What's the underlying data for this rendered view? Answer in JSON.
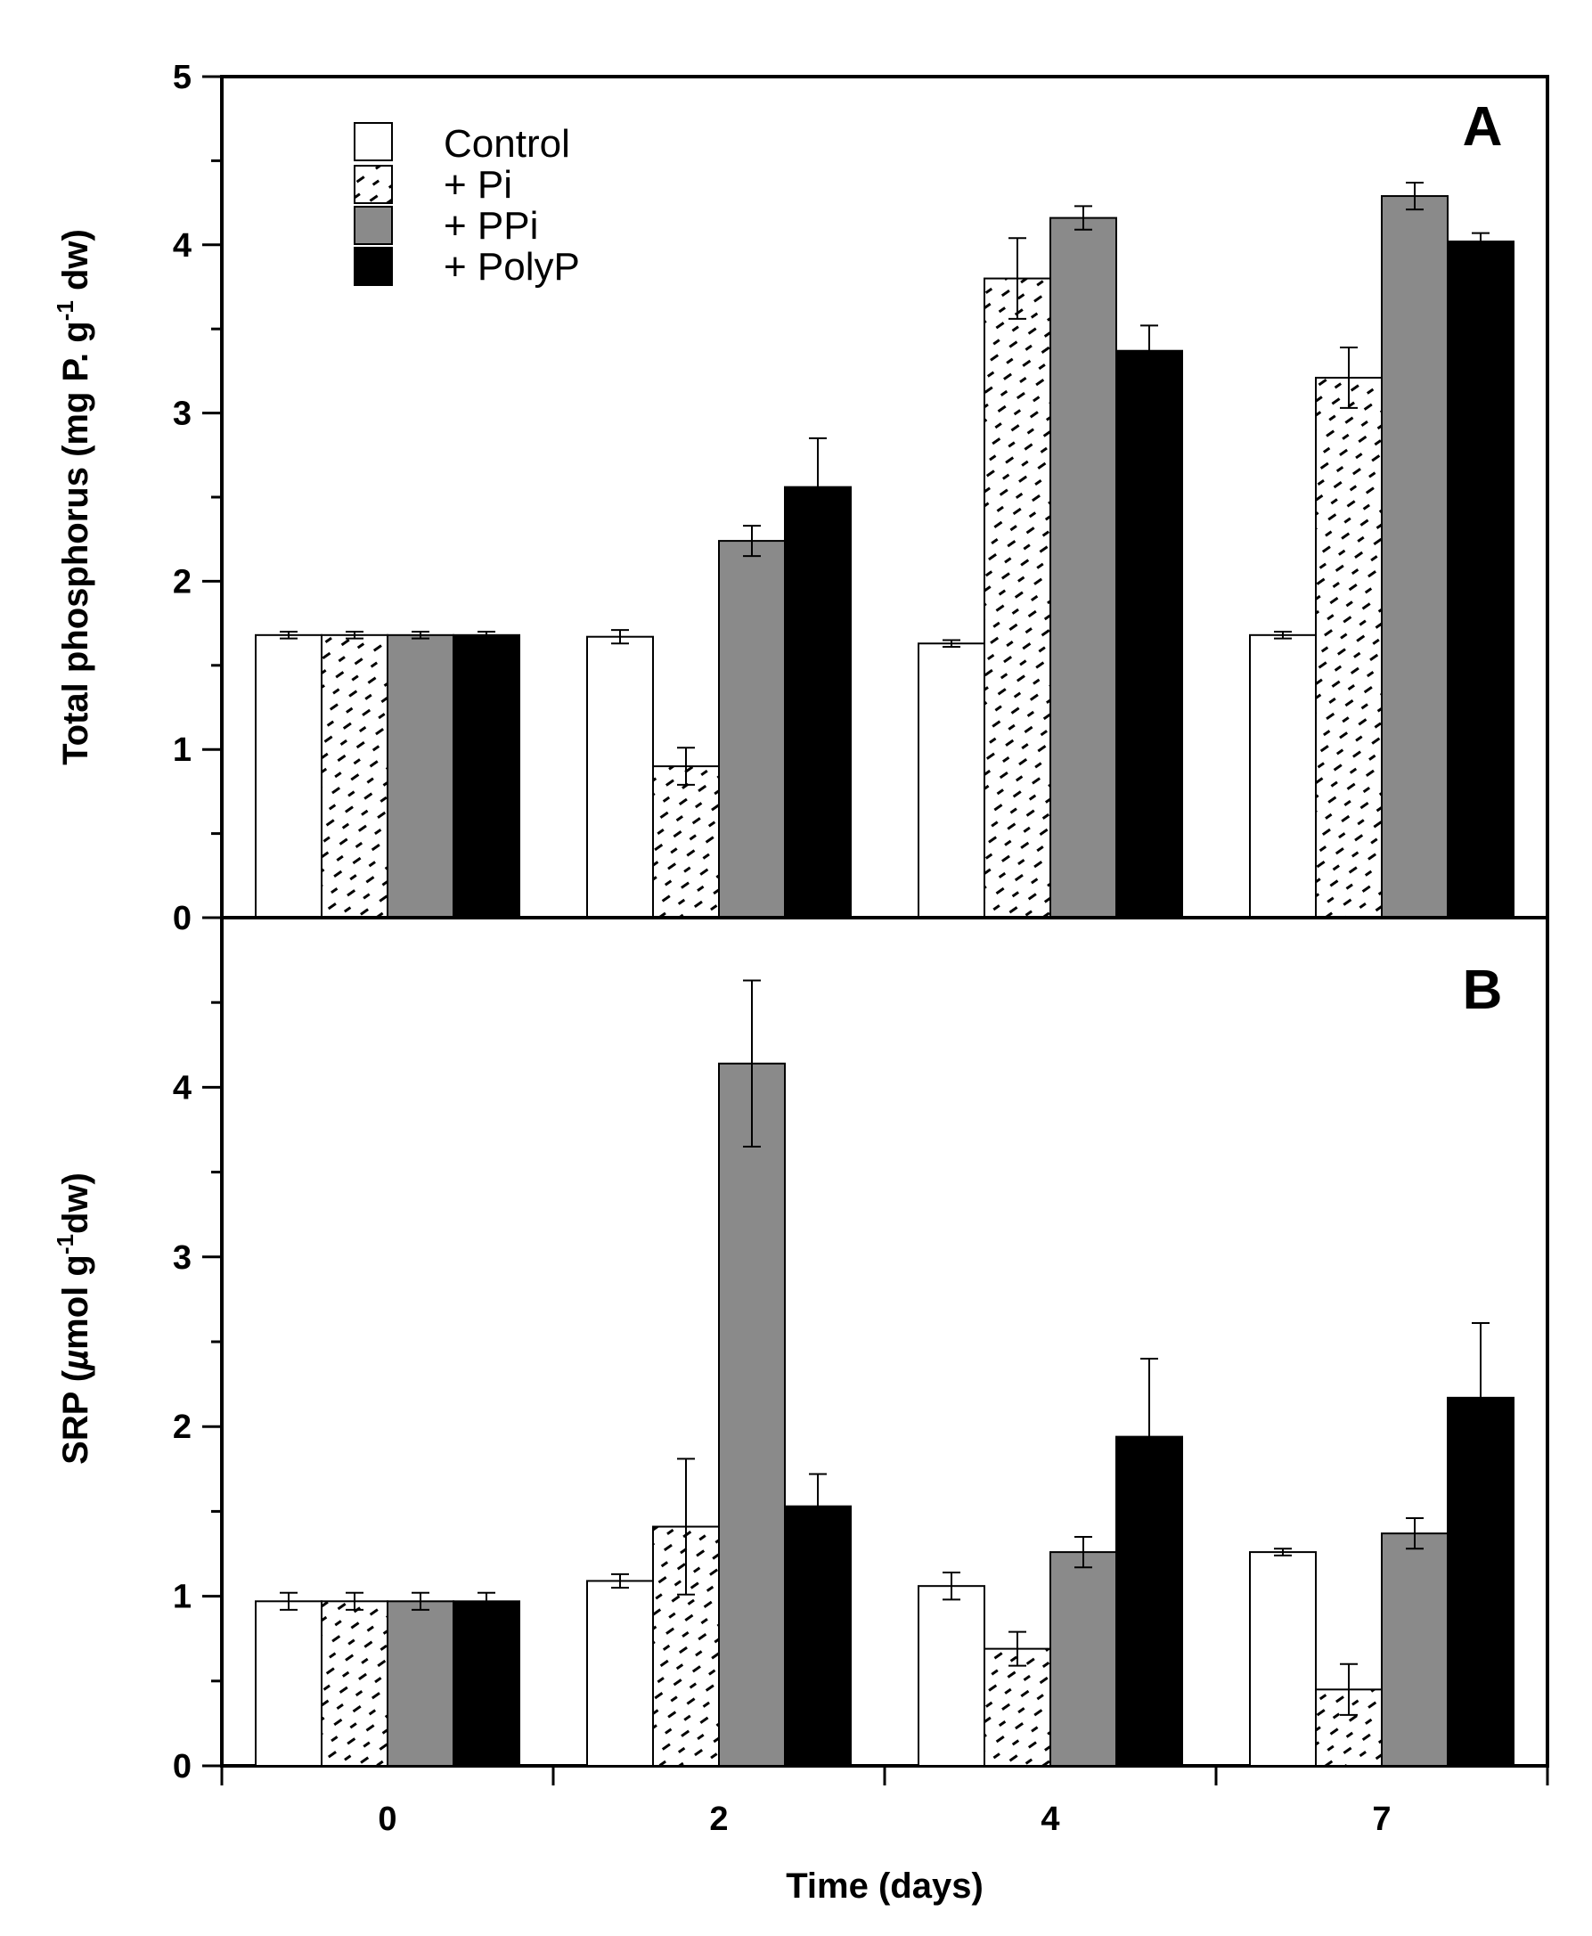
{
  "chart_data": [
    {
      "type": "bar",
      "panel": "A",
      "ylabel": "Total  phosphorus (mg P. g",
      "ylabel_sup": "-1",
      "ylabel_end": " dw)",
      "ylim": [
        0,
        5
      ],
      "yticks": [
        "0",
        "1",
        "2",
        "3",
        "4",
        "5"
      ],
      "categories": [
        "0",
        "2",
        "4",
        "7"
      ],
      "series": [
        {
          "name": "Control",
          "values": [
            1.68,
            1.67,
            1.63,
            1.68
          ],
          "errors": [
            0.02,
            0.04,
            0.02,
            0.02
          ]
        },
        {
          "name": "+ Pi",
          "values": [
            1.68,
            0.9,
            3.8,
            3.21
          ],
          "errors": [
            0.02,
            0.11,
            0.24,
            0.18
          ]
        },
        {
          "name": "+ PPi",
          "values": [
            1.68,
            2.24,
            4.16,
            4.29
          ],
          "errors": [
            0.02,
            0.09,
            0.07,
            0.08
          ]
        },
        {
          "name": "+ PolyP",
          "values": [
            1.68,
            2.56,
            3.37,
            4.02
          ],
          "errors": [
            0.02,
            0.29,
            0.15,
            0.05
          ]
        }
      ],
      "legend_location": "top-left"
    },
    {
      "type": "bar",
      "panel": "B",
      "ylabel": "SRP (",
      "ylabel_mu": "µ",
      "ylabel_rest": "mol g",
      "ylabel_sup": "-1",
      "ylabel_end": "dw)",
      "ylim": [
        0,
        5
      ],
      "yticks": [
        "0",
        "1",
        "2",
        "3",
        "4"
      ],
      "xlabel": "Time (days)",
      "categories": [
        "0",
        "2",
        "4",
        "7"
      ],
      "series": [
        {
          "name": "Control",
          "values": [
            0.97,
            1.09,
            1.06,
            1.26
          ],
          "errors": [
            0.05,
            0.04,
            0.08,
            0.02
          ]
        },
        {
          "name": "+ Pi",
          "values": [
            0.97,
            1.41,
            0.69,
            0.45
          ],
          "errors": [
            0.05,
            0.4,
            0.1,
            0.15
          ]
        },
        {
          "name": "+ PPi",
          "values": [
            0.97,
            4.14,
            1.26,
            1.37
          ],
          "errors": [
            0.05,
            0.49,
            0.09,
            0.09
          ]
        },
        {
          "name": "+ PolyP",
          "values": [
            0.97,
            1.53,
            1.94,
            2.17
          ],
          "errors": [
            0.05,
            0.19,
            0.46,
            0.44
          ]
        }
      ]
    }
  ],
  "colors": {
    "control": "#ffffff",
    "pi": "#ffffff",
    "ppi": "#8a8a8a",
    "polyp": "#000000",
    "axis": "#000000"
  }
}
